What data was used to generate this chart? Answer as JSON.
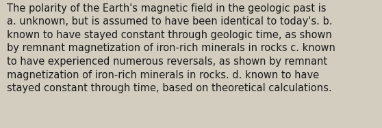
{
  "lines": [
    "The polarity of the Earth's magnetic field in the geologic past is",
    "a. unknown, but is assumed to have been identical to today's. b.",
    "known to have stayed constant through geologic time, as shown",
    "by remnant magnetization of iron-rich minerals in rocks c. known",
    "to have experienced numerous reversals, as shown by remnant",
    "magnetization of iron-rich minerals in rocks. d. known to have",
    "stayed constant through time, based on theoretical calculations."
  ],
  "background_color": "#d3cdc0",
  "text_color": "#1a1a1a",
  "font_size": 10.5,
  "font_family": "DejaVu Sans",
  "fig_width": 5.58,
  "fig_height": 1.88,
  "dpi": 100
}
